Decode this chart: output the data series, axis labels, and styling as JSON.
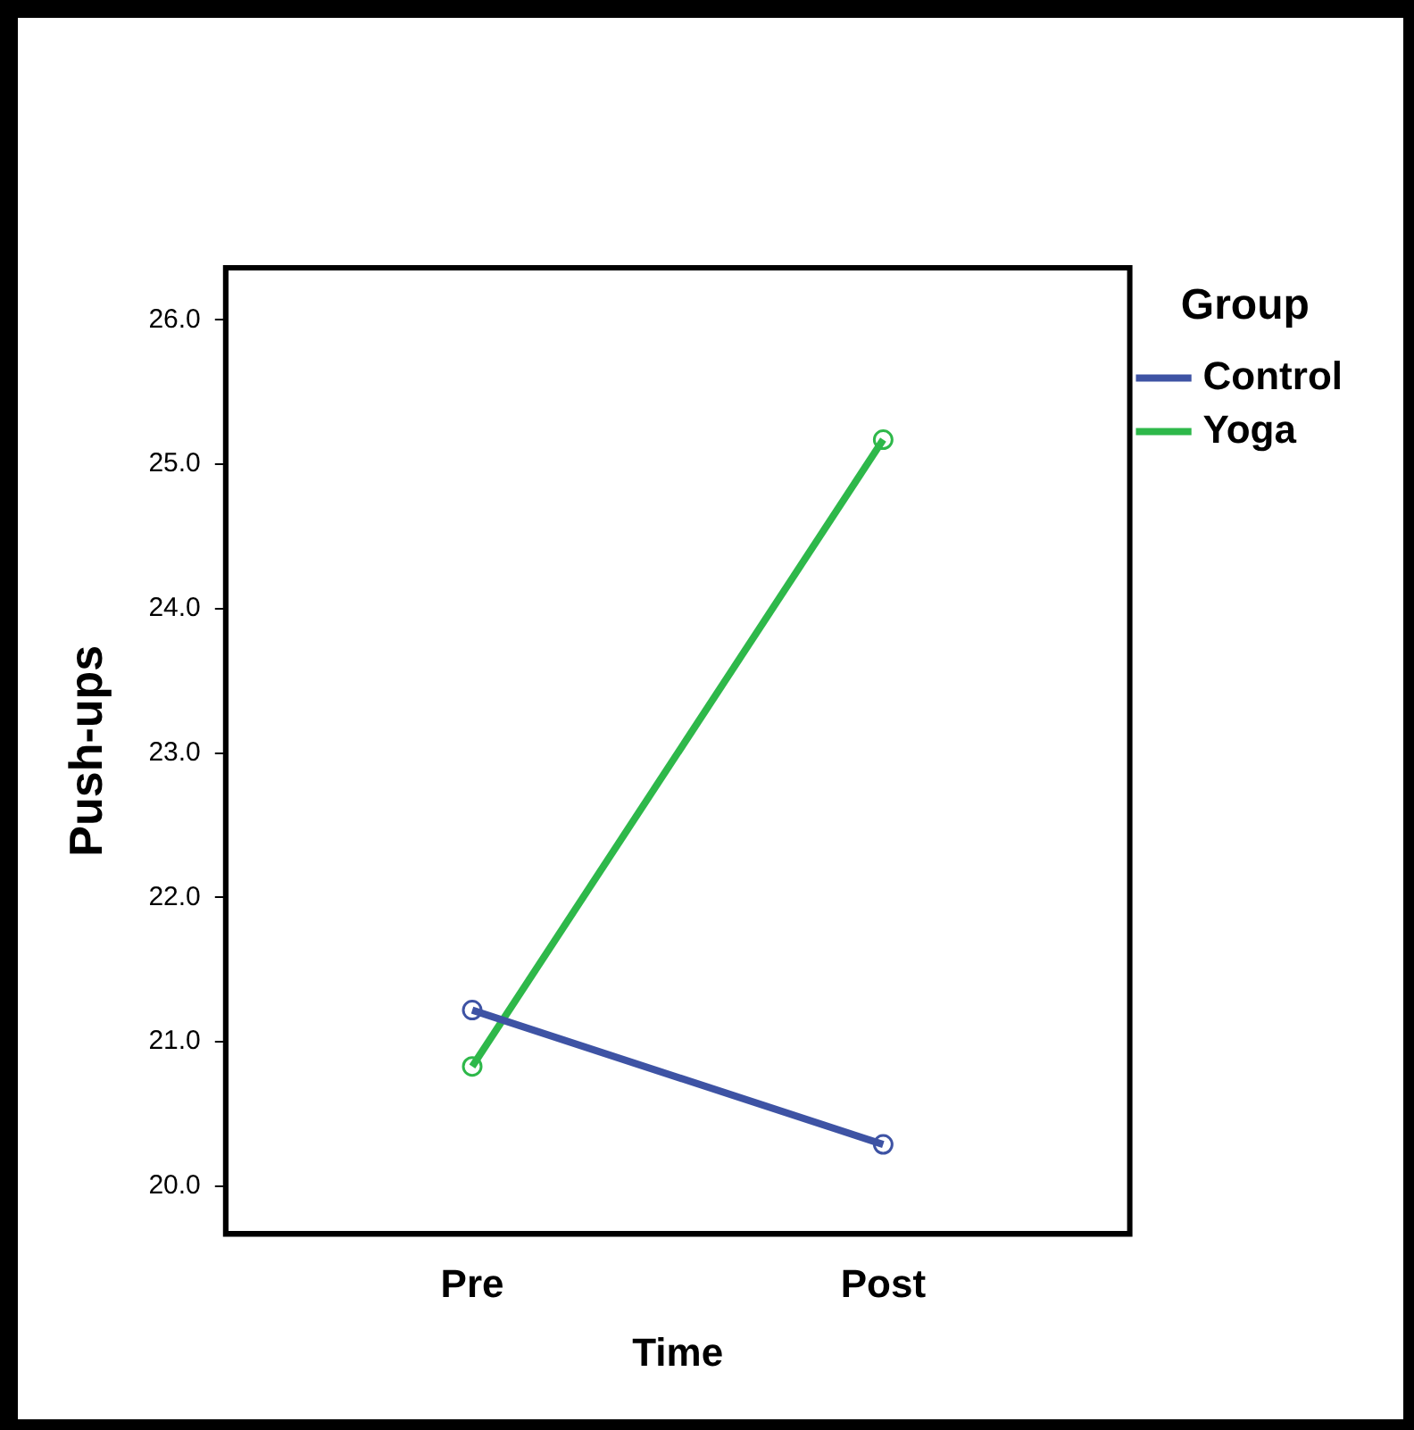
{
  "chart_data": {
    "type": "line",
    "xlabel": "Time",
    "ylabel": "Push-ups",
    "legend_title": "Group",
    "categories": [
      "Pre",
      "Post"
    ],
    "series": [
      {
        "name": "Control",
        "color": "#3e53a4",
        "values": [
          21.22,
          20.29
        ]
      },
      {
        "name": "Yoga",
        "color": "#2eb84a",
        "values": [
          20.83,
          25.17
        ]
      }
    ],
    "ylim": [
      19.67,
      26.36
    ],
    "yticks": [
      {
        "value": 20,
        "label": "20.0"
      },
      {
        "value": 21,
        "label": "21.0"
      },
      {
        "value": 22,
        "label": "22.0"
      },
      {
        "value": 23,
        "label": "23.0"
      },
      {
        "value": 24,
        "label": "24.0"
      },
      {
        "value": 25,
        "label": "25.0"
      },
      {
        "value": 26,
        "label": "26.0"
      }
    ],
    "grid": false,
    "legend": "right",
    "marker": "circle",
    "line_style": "solid"
  }
}
